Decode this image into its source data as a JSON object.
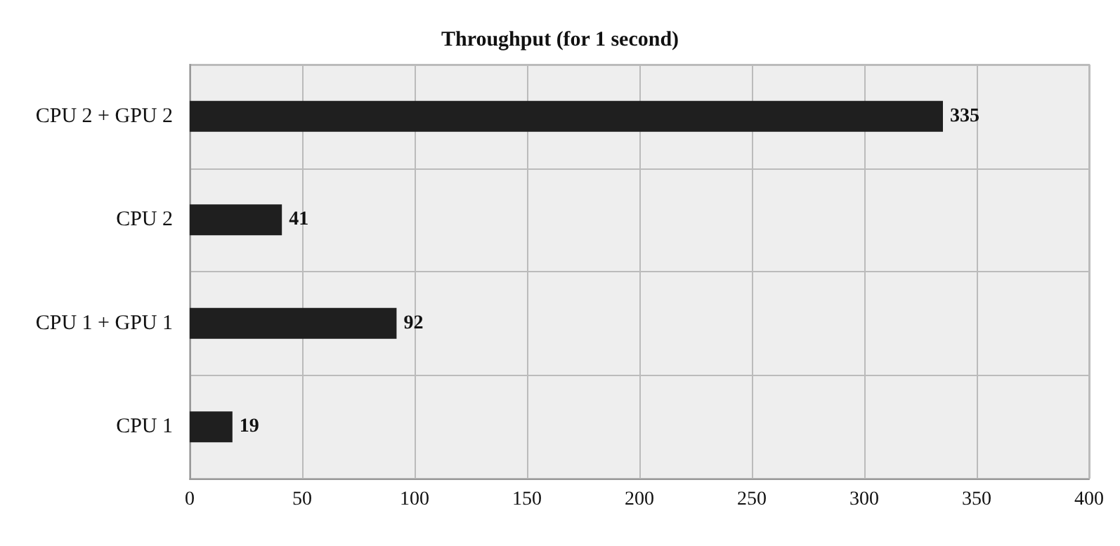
{
  "chart_data": {
    "type": "bar",
    "orientation": "horizontal",
    "title": "Throughput (for 1 second)",
    "categories": [
      "CPU 2 + GPU 2",
      "CPU 2",
      "CPU 1 + GPU 1",
      "CPU 1"
    ],
    "values": [
      335,
      41,
      92,
      19
    ],
    "color": "#1f1f1f",
    "xlim": [
      0,
      400
    ],
    "xticks": [
      0,
      50,
      100,
      150,
      200,
      250,
      300,
      350,
      400
    ],
    "grid": true,
    "data_labels": true
  }
}
